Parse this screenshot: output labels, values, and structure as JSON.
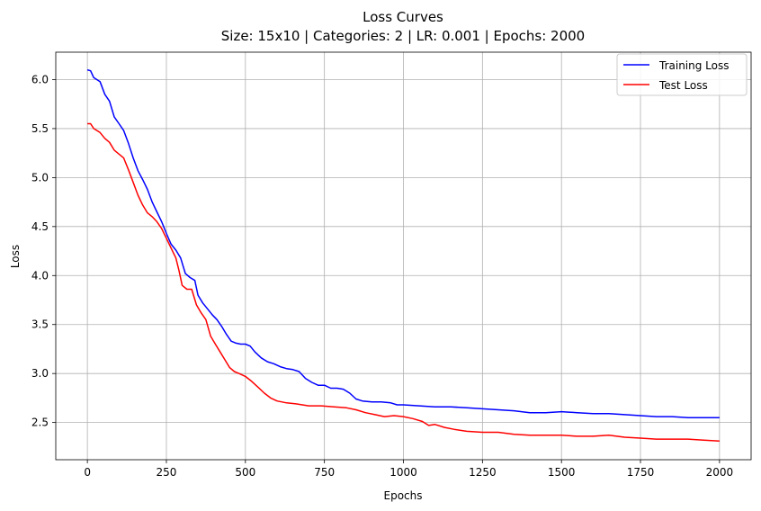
{
  "chart_data": {
    "type": "line",
    "title": "Loss Curves",
    "subtitle": "Size: 15x10 | Categories: 2 | LR: 0.001 | Epochs: 2000",
    "xlabel": "Epochs",
    "ylabel": "Loss",
    "xlim": [
      -100,
      2100
    ],
    "ylim": [
      2.12,
      6.28
    ],
    "xticks": [
      0,
      250,
      500,
      750,
      1000,
      1250,
      1500,
      1750,
      2000
    ],
    "xtick_labels": [
      "0",
      "250",
      "500",
      "750",
      "1000",
      "1250",
      "1500",
      "1750",
      "2000"
    ],
    "yticks": [
      2.5,
      3.0,
      3.5,
      4.0,
      4.5,
      5.0,
      5.5,
      6.0
    ],
    "ytick_labels": [
      "2.5",
      "3.0",
      "3.5",
      "4.0",
      "4.5",
      "5.0",
      "5.5",
      "6.0"
    ],
    "grid": true,
    "legend_position": "top-right",
    "series": [
      {
        "name": "Training Loss",
        "color": "#0000ff",
        "points": [
          [
            0,
            6.1
          ],
          [
            10,
            6.09
          ],
          [
            20,
            6.02
          ],
          [
            40,
            5.98
          ],
          [
            55,
            5.85
          ],
          [
            70,
            5.78
          ],
          [
            85,
            5.62
          ],
          [
            100,
            5.55
          ],
          [
            115,
            5.48
          ],
          [
            130,
            5.35
          ],
          [
            145,
            5.2
          ],
          [
            160,
            5.07
          ],
          [
            175,
            4.98
          ],
          [
            190,
            4.88
          ],
          [
            205,
            4.75
          ],
          [
            220,
            4.65
          ],
          [
            235,
            4.55
          ],
          [
            250,
            4.43
          ],
          [
            265,
            4.32
          ],
          [
            280,
            4.26
          ],
          [
            295,
            4.18
          ],
          [
            310,
            4.02
          ],
          [
            325,
            3.98
          ],
          [
            340,
            3.95
          ],
          [
            350,
            3.8
          ],
          [
            365,
            3.72
          ],
          [
            380,
            3.66
          ],
          [
            395,
            3.6
          ],
          [
            410,
            3.55
          ],
          [
            425,
            3.48
          ],
          [
            440,
            3.4
          ],
          [
            455,
            3.33
          ],
          [
            470,
            3.31
          ],
          [
            485,
            3.3
          ],
          [
            500,
            3.3
          ],
          [
            515,
            3.28
          ],
          [
            530,
            3.22
          ],
          [
            550,
            3.16
          ],
          [
            570,
            3.12
          ],
          [
            590,
            3.1
          ],
          [
            610,
            3.07
          ],
          [
            630,
            3.05
          ],
          [
            650,
            3.04
          ],
          [
            670,
            3.02
          ],
          [
            690,
            2.95
          ],
          [
            710,
            2.91
          ],
          [
            730,
            2.88
          ],
          [
            750,
            2.88
          ],
          [
            770,
            2.85
          ],
          [
            790,
            2.85
          ],
          [
            810,
            2.84
          ],
          [
            830,
            2.8
          ],
          [
            850,
            2.74
          ],
          [
            870,
            2.72
          ],
          [
            900,
            2.71
          ],
          [
            930,
            2.71
          ],
          [
            960,
            2.7
          ],
          [
            980,
            2.68
          ],
          [
            1000,
            2.68
          ],
          [
            1050,
            2.67
          ],
          [
            1100,
            2.66
          ],
          [
            1150,
            2.66
          ],
          [
            1200,
            2.65
          ],
          [
            1250,
            2.64
          ],
          [
            1300,
            2.63
          ],
          [
            1350,
            2.62
          ],
          [
            1400,
            2.6
          ],
          [
            1450,
            2.6
          ],
          [
            1500,
            2.61
          ],
          [
            1550,
            2.6
          ],
          [
            1600,
            2.59
          ],
          [
            1650,
            2.59
          ],
          [
            1700,
            2.58
          ],
          [
            1750,
            2.57
          ],
          [
            1800,
            2.56
          ],
          [
            1850,
            2.56
          ],
          [
            1900,
            2.55
          ],
          [
            1950,
            2.55
          ],
          [
            2000,
            2.55
          ]
        ]
      },
      {
        "name": "Test Loss",
        "color": "#ff0000",
        "points": [
          [
            0,
            5.55
          ],
          [
            10,
            5.55
          ],
          [
            20,
            5.5
          ],
          [
            40,
            5.46
          ],
          [
            55,
            5.4
          ],
          [
            70,
            5.36
          ],
          [
            85,
            5.28
          ],
          [
            100,
            5.24
          ],
          [
            115,
            5.2
          ],
          [
            130,
            5.08
          ],
          [
            145,
            4.95
          ],
          [
            160,
            4.82
          ],
          [
            175,
            4.72
          ],
          [
            190,
            4.64
          ],
          [
            205,
            4.6
          ],
          [
            220,
            4.55
          ],
          [
            235,
            4.48
          ],
          [
            250,
            4.38
          ],
          [
            265,
            4.28
          ],
          [
            280,
            4.18
          ],
          [
            290,
            4.05
          ],
          [
            300,
            3.9
          ],
          [
            315,
            3.86
          ],
          [
            330,
            3.86
          ],
          [
            345,
            3.7
          ],
          [
            360,
            3.62
          ],
          [
            375,
            3.55
          ],
          [
            390,
            3.38
          ],
          [
            405,
            3.3
          ],
          [
            420,
            3.22
          ],
          [
            435,
            3.14
          ],
          [
            450,
            3.06
          ],
          [
            465,
            3.02
          ],
          [
            480,
            3.0
          ],
          [
            500,
            2.97
          ],
          [
            520,
            2.92
          ],
          [
            540,
            2.86
          ],
          [
            560,
            2.8
          ],
          [
            580,
            2.75
          ],
          [
            600,
            2.72
          ],
          [
            630,
            2.7
          ],
          [
            660,
            2.69
          ],
          [
            700,
            2.67
          ],
          [
            740,
            2.67
          ],
          [
            780,
            2.66
          ],
          [
            820,
            2.65
          ],
          [
            850,
            2.63
          ],
          [
            880,
            2.6
          ],
          [
            910,
            2.58
          ],
          [
            940,
            2.56
          ],
          [
            970,
            2.57
          ],
          [
            1000,
            2.56
          ],
          [
            1030,
            2.54
          ],
          [
            1060,
            2.51
          ],
          [
            1080,
            2.47
          ],
          [
            1100,
            2.48
          ],
          [
            1130,
            2.45
          ],
          [
            1160,
            2.43
          ],
          [
            1200,
            2.41
          ],
          [
            1250,
            2.4
          ],
          [
            1300,
            2.4
          ],
          [
            1350,
            2.38
          ],
          [
            1400,
            2.37
          ],
          [
            1450,
            2.37
          ],
          [
            1500,
            2.37
          ],
          [
            1550,
            2.36
          ],
          [
            1600,
            2.36
          ],
          [
            1650,
            2.37
          ],
          [
            1700,
            2.35
          ],
          [
            1750,
            2.34
          ],
          [
            1800,
            2.33
          ],
          [
            1850,
            2.33
          ],
          [
            1900,
            2.33
          ],
          [
            1950,
            2.32
          ],
          [
            2000,
            2.31
          ]
        ]
      }
    ]
  }
}
